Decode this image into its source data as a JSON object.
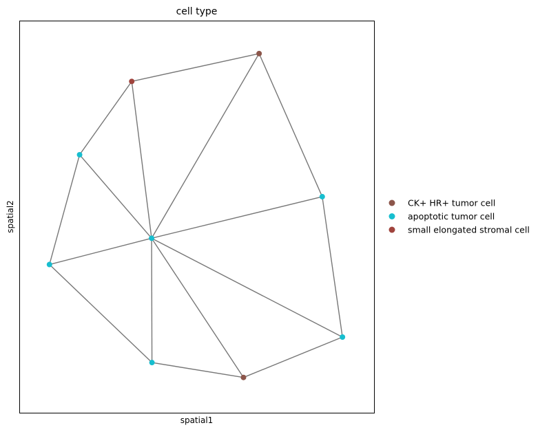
{
  "chart_data": {
    "type": "scatter",
    "title": "cell type",
    "xlabel": "spatial1",
    "ylabel": "spatial2",
    "xlim": [
      0,
      100
    ],
    "ylim": [
      0,
      100
    ],
    "grid": false,
    "ticks": false,
    "legend": {
      "placement": "right",
      "entries": [
        {
          "label": "CK+ HR+ tumor cell",
          "color": "#8c564b"
        },
        {
          "label": "apoptotic tumor cell",
          "color": "#17becf"
        },
        {
          "label": "small elongated stromal cell",
          "color": "#a0443d"
        }
      ]
    },
    "edge_color": "#777777",
    "points": [
      {
        "id": "p0",
        "x": 67.6,
        "y": 91.6,
        "category": 0
      },
      {
        "id": "p1",
        "x": 31.7,
        "y": 84.5,
        "category": 2
      },
      {
        "id": "p2",
        "x": 17.0,
        "y": 65.8,
        "category": 1
      },
      {
        "id": "p3",
        "x": 8.5,
        "y": 37.8,
        "category": 1
      },
      {
        "id": "p4",
        "x": 37.3,
        "y": 44.5,
        "category": 1
      },
      {
        "id": "p5",
        "x": 85.4,
        "y": 55.1,
        "category": 1
      },
      {
        "id": "p6",
        "x": 91.1,
        "y": 19.3,
        "category": 1
      },
      {
        "id": "p7",
        "x": 37.4,
        "y": 12.8,
        "category": 1
      },
      {
        "id": "p8",
        "x": 63.2,
        "y": 9.0,
        "category": 0
      }
    ],
    "edges": [
      [
        0,
        1
      ],
      [
        1,
        2
      ],
      [
        2,
        3
      ],
      [
        3,
        7
      ],
      [
        7,
        8
      ],
      [
        8,
        6
      ],
      [
        6,
        5
      ],
      [
        5,
        0
      ],
      [
        4,
        0
      ],
      [
        4,
        1
      ],
      [
        4,
        2
      ],
      [
        4,
        3
      ],
      [
        4,
        5
      ],
      [
        4,
        6
      ],
      [
        4,
        7
      ],
      [
        4,
        8
      ]
    ]
  }
}
